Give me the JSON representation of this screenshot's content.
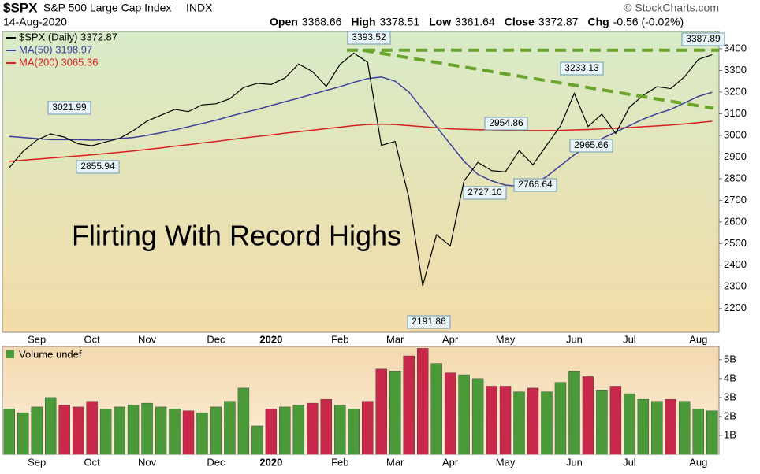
{
  "header": {
    "symbol": "$SPX",
    "name": "S&P 500 Large Cap Index",
    "exchange": "INDX",
    "source": "© StockCharts.com",
    "date": "14-Aug-2020",
    "quote": [
      {
        "label": "Open",
        "value": "3368.66"
      },
      {
        "label": "High",
        "value": "3378.51"
      },
      {
        "label": "Low",
        "value": "3361.64"
      },
      {
        "label": "Close",
        "value": "3372.87"
      },
      {
        "label": "Chg",
        "value": "-0.56 (-0.02%)"
      }
    ]
  },
  "chart_data": [
    {
      "type": "line",
      "annotation": "Flirting With Record Highs",
      "categories": [
        null,
        null,
        "Sep",
        null,
        null,
        null,
        "Oct",
        null,
        null,
        null,
        "Nov",
        null,
        null,
        null,
        null,
        "Dec",
        null,
        null,
        null,
        "2020",
        null,
        null,
        null,
        null,
        "Feb",
        null,
        null,
        null,
        "Mar",
        null,
        null,
        null,
        "Apr",
        null,
        null,
        null,
        "May",
        null,
        null,
        null,
        null,
        "Jun",
        null,
        null,
        null,
        "Jul",
        null,
        null,
        null,
        null,
        "Aug",
        null
      ],
      "series": [
        {
          "name": "$SPX (Daily) 3372.87",
          "color": "#000000",
          "values": [
            2850,
            2926,
            2978,
            3007,
            2992,
            2961,
            2952,
            2970,
            2986,
            3022,
            3066,
            3093,
            3120,
            3110,
            3141,
            3146,
            3169,
            3221,
            3240,
            3235,
            3265,
            3330,
            3295,
            3226,
            3328,
            3380,
            3338,
            2954,
            2972,
            2711,
            2305,
            2541,
            2489,
            2790,
            2875,
            2837,
            2831,
            2930,
            2864,
            2955,
            3044,
            3194,
            3041,
            3098,
            3009,
            3130,
            3185,
            3225,
            3216,
            3271,
            3351,
            3373
          ]
        },
        {
          "name": "MA(50) 3198.97",
          "color": "#3a3f9a",
          "values": [
            2995,
            2990,
            2985,
            2980,
            2980,
            2980,
            2978,
            2980,
            2985,
            2990,
            3000,
            3012,
            3025,
            3040,
            3055,
            3070,
            3088,
            3105,
            3120,
            3138,
            3155,
            3172,
            3190,
            3208,
            3225,
            3245,
            3262,
            3270,
            3250,
            3200,
            3120,
            3040,
            2960,
            2880,
            2820,
            2790,
            2770,
            2765,
            2775,
            2810,
            2860,
            2910,
            2950,
            2985,
            3015,
            3045,
            3075,
            3100,
            3120,
            3150,
            3180,
            3199
          ]
        },
        {
          "name": "MA(200) 3065.36",
          "color": "#d62020",
          "values": [
            2880,
            2885,
            2890,
            2895,
            2900,
            2905,
            2910,
            2916,
            2922,
            2928,
            2935,
            2942,
            2950,
            2957,
            2965,
            2972,
            2980,
            2988,
            2995,
            3002,
            3010,
            3017,
            3024,
            3031,
            3038,
            3045,
            3050,
            3052,
            3050,
            3045,
            3040,
            3035,
            3030,
            3028,
            3026,
            3025,
            3024,
            3023,
            3022,
            3022,
            3023,
            3025,
            3027,
            3030,
            3033,
            3036,
            3040,
            3044,
            3048,
            3053,
            3059,
            3065
          ]
        }
      ],
      "price_labels": [
        {
          "value": 3393.52,
          "label": "3393.52"
        },
        {
          "value": 3021.99,
          "label": "3021.99"
        },
        {
          "value": 2855.94,
          "label": "2855.94"
        },
        {
          "value": 2191.86,
          "label": "2191.86"
        },
        {
          "value": 2727.1,
          "label": "2727.10"
        },
        {
          "value": 2766.64,
          "label": "2766.64"
        },
        {
          "value": 2954.86,
          "label": "2954.86"
        },
        {
          "value": 2965.66,
          "label": "2965.66"
        },
        {
          "value": 3233.13,
          "label": "3233.13"
        },
        {
          "value": 3387.89,
          "label": "3387.89"
        }
      ],
      "trendlines": [
        {
          "color": "#6aa42a",
          "values": [
            3393.52,
            3393.52
          ]
        },
        {
          "color": "#6aa42a",
          "values": [
            3393.52,
            3125
          ]
        }
      ],
      "ylim": [
        2090,
        3480
      ],
      "yticks": [
        2200,
        2300,
        2400,
        2500,
        2600,
        2700,
        2800,
        2900,
        3000,
        3100,
        3200,
        3300,
        3400
      ]
    },
    {
      "type": "bar",
      "series": [
        {
          "name": "Volume undef",
          "values": [
            2.4,
            2.2,
            2.5,
            3.0,
            2.6,
            2.5,
            2.8,
            2.4,
            2.5,
            2.6,
            2.7,
            2.5,
            2.4,
            2.3,
            2.2,
            2.5,
            2.8,
            3.5,
            1.5,
            2.4,
            2.5,
            2.6,
            2.7,
            2.9,
            2.6,
            2.4,
            2.8,
            4.5,
            4.4,
            5.2,
            5.6,
            4.8,
            4.3,
            4.2,
            4.0,
            3.6,
            3.6,
            3.3,
            3.5,
            3.3,
            3.8,
            4.4,
            4.1,
            3.4,
            3.6,
            3.2,
            2.9,
            2.8,
            2.9,
            2.8,
            2.4,
            2.3
          ]
        }
      ],
      "up_color": "#4a9a3a",
      "down_color": "#c8284a",
      "ylim": [
        0,
        5.7
      ],
      "yticks": [
        {
          "value": 1,
          "label": "1B"
        },
        {
          "value": 2,
          "label": "2B"
        },
        {
          "value": 3,
          "label": "3B"
        },
        {
          "value": 4,
          "label": "4B"
        },
        {
          "value": 5,
          "label": "5B"
        }
      ]
    }
  ]
}
